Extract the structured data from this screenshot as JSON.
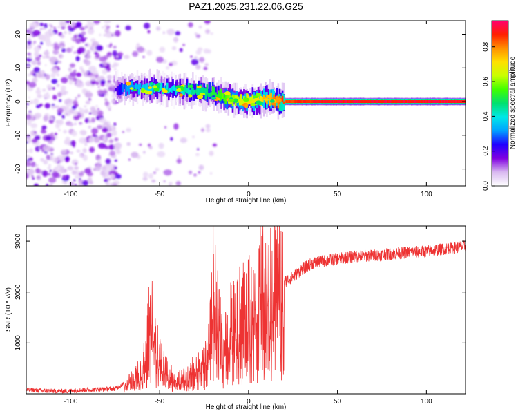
{
  "title": "PAZ1.2025.231.22.06.G25",
  "chart_data": [
    {
      "type": "heatmap",
      "title": "PAZ1.2025.231.22.06.G25",
      "xlabel": "Height of straight line (km)",
      "ylabel": "Frequency (Hz)",
      "xlim": [
        -125,
        122
      ],
      "ylim": [
        -25,
        24
      ],
      "xticks": [
        -100,
        -50,
        0,
        50,
        100
      ],
      "yticks": [
        -20,
        -10,
        0,
        10,
        20
      ],
      "colorbar": {
        "label": "Normalized spectral amplitude",
        "range": [
          0,
          0.95
        ],
        "ticks": [
          "0.0",
          "0.2",
          "0.4",
          "0.6",
          "0.8"
        ],
        "colors": [
          "#ffffff",
          "#d8b8f0",
          "#8000e0",
          "#2000ff",
          "#00a0ff",
          "#00e8e8",
          "#00e070",
          "#40ff00",
          "#c8ff00",
          "#ffe000",
          "#ff9000",
          "#ff2000",
          "#ff0070"
        ]
      },
      "ridge": {
        "x": [
          -125,
          -75,
          -70,
          -60,
          -50,
          -40,
          -30,
          -20,
          -15,
          -10,
          -5,
          0,
          5,
          10,
          15,
          20,
          50,
          100,
          122
        ],
        "frequency": [
          3,
          4,
          4,
          4,
          4,
          3.5,
          3,
          2.5,
          1.5,
          1,
          0,
          0,
          0.5,
          1,
          0.3,
          0,
          0,
          0,
          0
        ],
        "amplitude": [
          0.1,
          0.2,
          0.3,
          0.35,
          0.4,
          0.4,
          0.45,
          0.5,
          0.55,
          0.6,
          0.65,
          0.7,
          0.7,
          0.75,
          0.8,
          0.85,
          0.9,
          0.9,
          0.9
        ]
      }
    },
    {
      "type": "line",
      "xlabel": "Height of straight line (km)",
      "ylabel": "SNR (10 * v/v)",
      "xlim": [
        -125,
        122
      ],
      "ylim": [
        0,
        3300
      ],
      "xticks": [
        -100,
        -50,
        0,
        50,
        100
      ],
      "yticks": [
        1000,
        2000,
        3000
      ],
      "series": [
        {
          "name": "SNR",
          "color": "#ee3333",
          "x": [
            -125,
            -115,
            -105,
            -95,
            -85,
            -75,
            -70,
            -65,
            -60,
            -57,
            -55,
            -52,
            -50,
            -45,
            -40,
            -35,
            -30,
            -25,
            -22,
            -20,
            -15,
            -12,
            -10,
            -5,
            0,
            5,
            8,
            10,
            15,
            20,
            25,
            30,
            35,
            40,
            50,
            60,
            70,
            80,
            90,
            100,
            110,
            122
          ],
          "values": [
            80,
            60,
            50,
            70,
            90,
            100,
            200,
            300,
            450,
            1000,
            1800,
            1000,
            700,
            400,
            250,
            300,
            500,
            600,
            900,
            2300,
            1000,
            1200,
            1400,
            1600,
            1700,
            2000,
            2300,
            2500,
            2200,
            2200,
            2300,
            2450,
            2550,
            2600,
            2650,
            2700,
            2720,
            2750,
            2780,
            2800,
            2850,
            2900
          ]
        }
      ]
    }
  ]
}
